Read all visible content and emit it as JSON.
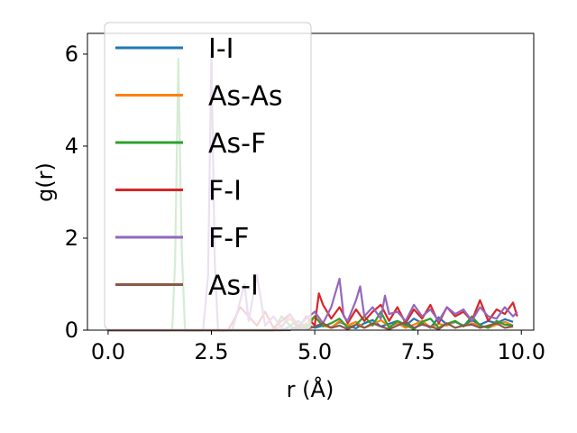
{
  "chart_data": {
    "type": "line",
    "xlabel": "r (Å)",
    "ylabel": "g(r)",
    "xlim": [
      -0.5,
      10.3
    ],
    "ylim": [
      0,
      6.45
    ],
    "xticks": [
      "0.0",
      "2.5",
      "5.0",
      "7.5",
      "10.0"
    ],
    "xtick_values": [
      0,
      2.5,
      5,
      7.5,
      10
    ],
    "yticks": [
      "0",
      "2",
      "4",
      "6"
    ],
    "ytick_values": [
      0,
      2,
      4,
      6
    ],
    "grid": false,
    "legend_position": "upper-left",
    "series": [
      {
        "name": "I-I",
        "color": "#1f77b4",
        "points": [
          [
            0,
            0
          ],
          [
            4.2,
            0
          ],
          [
            4.4,
            0.08
          ],
          [
            4.6,
            0.02
          ],
          [
            4.8,
            0.12
          ],
          [
            5.0,
            0.05
          ],
          [
            5.2,
            0.1
          ],
          [
            5.4,
            0.06
          ],
          [
            5.6,
            0.18
          ],
          [
            5.8,
            0.1
          ],
          [
            6.0,
            0.04
          ],
          [
            6.2,
            0.15
          ],
          [
            6.4,
            0.22
          ],
          [
            6.6,
            0.08
          ],
          [
            6.8,
            0.14
          ],
          [
            7.0,
            0.2
          ],
          [
            7.2,
            0.1
          ],
          [
            7.4,
            0.25
          ],
          [
            7.6,
            0.15
          ],
          [
            7.8,
            0.05
          ],
          [
            8.0,
            0.28
          ],
          [
            8.2,
            0.12
          ],
          [
            8.4,
            0.18
          ],
          [
            8.6,
            0.1
          ],
          [
            8.8,
            0.22
          ],
          [
            9.0,
            0.12
          ],
          [
            9.2,
            0.2
          ],
          [
            9.4,
            0.15
          ],
          [
            9.6,
            0.24
          ],
          [
            9.8,
            0.18
          ]
        ]
      },
      {
        "name": "As-As",
        "color": "#ff7f0e",
        "points": [
          [
            0,
            0
          ],
          [
            4.0,
            0
          ],
          [
            4.2,
            0.1
          ],
          [
            4.4,
            0.25
          ],
          [
            4.6,
            0.05
          ],
          [
            4.8,
            0.15
          ],
          [
            5.0,
            0.3
          ],
          [
            5.2,
            0.1
          ],
          [
            5.4,
            0.05
          ],
          [
            5.6,
            0.2
          ],
          [
            5.8,
            0.1
          ],
          [
            6.0,
            0.18
          ],
          [
            6.2,
            0.05
          ],
          [
            6.4,
            0.12
          ],
          [
            6.6,
            0.22
          ],
          [
            6.8,
            0.08
          ],
          [
            7.0,
            0.15
          ],
          [
            7.2,
            0.05
          ],
          [
            7.4,
            0.12
          ],
          [
            7.6,
            0.2
          ],
          [
            7.8,
            0.06
          ],
          [
            8.0,
            0.14
          ],
          [
            8.2,
            0.1
          ],
          [
            8.4,
            0.2
          ],
          [
            8.6,
            0.08
          ],
          [
            8.8,
            0.15
          ],
          [
            9.0,
            0.1
          ],
          [
            9.2,
            0.05
          ],
          [
            9.4,
            0.12
          ],
          [
            9.6,
            0.18
          ],
          [
            9.8,
            0.1
          ]
        ]
      },
      {
        "name": "As-F",
        "color": "#2ca02c",
        "points": [
          [
            0,
            0
          ],
          [
            1.55,
            0
          ],
          [
            1.62,
            1.5
          ],
          [
            1.7,
            5.9
          ],
          [
            1.78,
            1.8
          ],
          [
            1.86,
            0
          ],
          [
            4.0,
            0
          ],
          [
            4.2,
            0.3
          ],
          [
            4.4,
            0.1
          ],
          [
            4.6,
            0.2
          ],
          [
            4.8,
            0.05
          ],
          [
            5.0,
            0.3
          ],
          [
            5.2,
            0.08
          ],
          [
            5.4,
            0.15
          ],
          [
            5.6,
            0.25
          ],
          [
            5.8,
            0.05
          ],
          [
            6.0,
            0.12
          ],
          [
            6.2,
            0.3
          ],
          [
            6.4,
            0.1
          ],
          [
            6.6,
            0.4
          ],
          [
            6.8,
            0.05
          ],
          [
            7.0,
            0.2
          ],
          [
            7.2,
            0.12
          ],
          [
            7.4,
            0.02
          ],
          [
            7.6,
            0.18
          ],
          [
            7.8,
            0.25
          ],
          [
            8.0,
            0.05
          ],
          [
            8.2,
            0.14
          ],
          [
            8.4,
            0.2
          ],
          [
            8.6,
            0.08
          ],
          [
            8.8,
            0.3
          ],
          [
            9.0,
            0.1
          ],
          [
            9.2,
            0.05
          ],
          [
            9.4,
            0.2
          ],
          [
            9.6,
            0.12
          ],
          [
            9.8,
            0.1
          ]
        ]
      },
      {
        "name": "F-I",
        "color": "#d62728",
        "points": [
          [
            0,
            0
          ],
          [
            2.9,
            0
          ],
          [
            3.0,
            0.15
          ],
          [
            3.2,
            0.5
          ],
          [
            3.4,
            0.3
          ],
          [
            3.6,
            0.1
          ],
          [
            3.8,
            0.4
          ],
          [
            4.0,
            0.05
          ],
          [
            4.2,
            0.2
          ],
          [
            4.4,
            0.35
          ],
          [
            4.6,
            0.05
          ],
          [
            4.8,
            0.3
          ],
          [
            5.0,
            0.1
          ],
          [
            5.1,
            0.8
          ],
          [
            5.2,
            0.55
          ],
          [
            5.4,
            0.25
          ],
          [
            5.6,
            0.5
          ],
          [
            5.8,
            0.15
          ],
          [
            6.0,
            0.45
          ],
          [
            6.2,
            0.2
          ],
          [
            6.4,
            0.4
          ],
          [
            6.6,
            0.55
          ],
          [
            6.8,
            0.2
          ],
          [
            7.0,
            0.5
          ],
          [
            7.2,
            0.15
          ],
          [
            7.4,
            0.45
          ],
          [
            7.6,
            0.25
          ],
          [
            7.8,
            0.55
          ],
          [
            8.0,
            0.15
          ],
          [
            8.2,
            0.5
          ],
          [
            8.4,
            0.3
          ],
          [
            8.6,
            0.4
          ],
          [
            8.8,
            0.2
          ],
          [
            9.0,
            0.65
          ],
          [
            9.2,
            0.2
          ],
          [
            9.4,
            0.45
          ],
          [
            9.6,
            0.35
          ],
          [
            9.8,
            0.6
          ],
          [
            9.9,
            0.3
          ]
        ]
      },
      {
        "name": "F-F",
        "color": "#9467bd",
        "points": [
          [
            0,
            0
          ],
          [
            2.3,
            0
          ],
          [
            2.42,
            1.2
          ],
          [
            2.5,
            6.0
          ],
          [
            2.58,
            1.5
          ],
          [
            2.66,
            0
          ],
          [
            3.0,
            0
          ],
          [
            3.1,
            0.3
          ],
          [
            3.3,
            1.0
          ],
          [
            3.4,
            0.2
          ],
          [
            3.6,
            1.2
          ],
          [
            3.8,
            0.1
          ],
          [
            4.0,
            0.3
          ],
          [
            4.2,
            0.05
          ],
          [
            4.4,
            0.35
          ],
          [
            4.6,
            0.1
          ],
          [
            4.8,
            0.25
          ],
          [
            5.0,
            0.4
          ],
          [
            5.2,
            0.15
          ],
          [
            5.4,
            0.5
          ],
          [
            5.6,
            1.12
          ],
          [
            5.7,
            0.3
          ],
          [
            5.8,
            0.2
          ],
          [
            6.0,
            0.65
          ],
          [
            6.1,
            0.95
          ],
          [
            6.2,
            0.3
          ],
          [
            6.4,
            0.5
          ],
          [
            6.6,
            0.25
          ],
          [
            6.7,
            0.75
          ],
          [
            6.8,
            0.35
          ],
          [
            7.0,
            0.4
          ],
          [
            7.2,
            0.2
          ],
          [
            7.4,
            0.55
          ],
          [
            7.6,
            0.3
          ],
          [
            7.8,
            0.45
          ],
          [
            8.0,
            0.2
          ],
          [
            8.2,
            0.5
          ],
          [
            8.4,
            0.35
          ],
          [
            8.6,
            0.45
          ],
          [
            8.8,
            0.2
          ],
          [
            9.0,
            0.5
          ],
          [
            9.2,
            0.3
          ],
          [
            9.4,
            0.25
          ],
          [
            9.6,
            0.5
          ],
          [
            9.8,
            0.3
          ],
          [
            9.9,
            0.4
          ]
        ]
      },
      {
        "name": "As-I",
        "color": "#8c564b",
        "points": [
          [
            0,
            0
          ],
          [
            4.4,
            0
          ],
          [
            4.6,
            0.1
          ],
          [
            4.8,
            0.02
          ],
          [
            5.0,
            0.08
          ],
          [
            5.2,
            0.15
          ],
          [
            5.4,
            0.05
          ],
          [
            5.6,
            0.1
          ],
          [
            5.8,
            0.02
          ],
          [
            6.0,
            0.12
          ],
          [
            6.2,
            0.05
          ],
          [
            6.4,
            0.15
          ],
          [
            6.6,
            0.08
          ],
          [
            6.8,
            0.02
          ],
          [
            7.0,
            0.1
          ],
          [
            7.2,
            0.18
          ],
          [
            7.4,
            0.05
          ],
          [
            7.6,
            0.12
          ],
          [
            7.8,
            0.08
          ],
          [
            8.0,
            0.02
          ],
          [
            8.2,
            0.15
          ],
          [
            8.4,
            0.05
          ],
          [
            8.6,
            0.1
          ],
          [
            8.8,
            0.12
          ],
          [
            9.0,
            0.05
          ],
          [
            9.2,
            0.1
          ],
          [
            9.4,
            0.15
          ],
          [
            9.6,
            0.05
          ],
          [
            9.8,
            0.08
          ]
        ]
      }
    ]
  }
}
